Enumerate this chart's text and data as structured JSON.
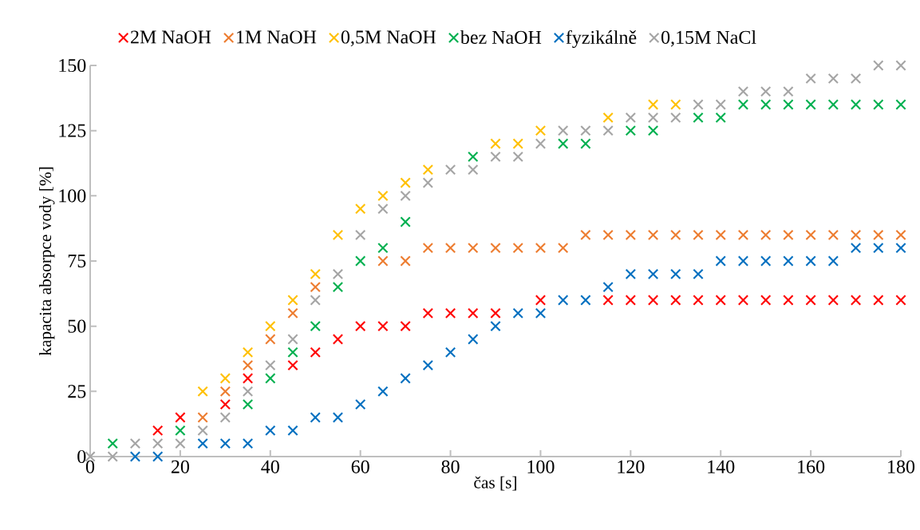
{
  "chart_data": {
    "type": "scatter",
    "xlabel": "čas [s]",
    "ylabel": "kapacita absorpce vody [%]",
    "x": [
      0,
      5,
      10,
      15,
      20,
      25,
      30,
      35,
      40,
      45,
      50,
      55,
      60,
      65,
      70,
      75,
      80,
      85,
      90,
      95,
      100,
      105,
      110,
      115,
      120,
      125,
      130,
      135,
      140,
      145,
      150,
      155,
      160,
      165,
      170,
      175,
      180
    ],
    "series": [
      {
        "name": "2M NaOH",
        "color": "#ff0000",
        "values": [
          null,
          null,
          null,
          10,
          15,
          null,
          20,
          30,
          null,
          35,
          40,
          45,
          50,
          50,
          50,
          55,
          55,
          55,
          55,
          null,
          60,
          null,
          null,
          60,
          60,
          60,
          60,
          60,
          60,
          60,
          60,
          60,
          60,
          60,
          60,
          60,
          60
        ]
      },
      {
        "name": "1M NaOH",
        "color": "#ed7d31",
        "values": [
          null,
          null,
          null,
          null,
          null,
          15,
          25,
          35,
          45,
          55,
          65,
          null,
          null,
          75,
          75,
          80,
          80,
          80,
          80,
          80,
          80,
          80,
          85,
          85,
          85,
          85,
          85,
          85,
          85,
          85,
          85,
          85,
          85,
          85,
          85,
          85,
          85
        ]
      },
      {
        "name": "0,5M NaOH",
        "color": "#ffc000",
        "values": [
          null,
          null,
          null,
          null,
          null,
          25,
          30,
          40,
          50,
          60,
          70,
          85,
          95,
          100,
          105,
          110,
          null,
          null,
          120,
          120,
          125,
          null,
          null,
          130,
          null,
          135,
          135,
          null,
          null,
          null,
          null,
          null,
          null,
          null,
          null,
          null,
          null
        ]
      },
      {
        "name": "bez NaOH",
        "color": "#00b050",
        "values": [
          null,
          5,
          null,
          null,
          10,
          null,
          null,
          20,
          30,
          40,
          50,
          65,
          75,
          80,
          90,
          null,
          null,
          115,
          null,
          null,
          null,
          120,
          120,
          null,
          125,
          125,
          null,
          130,
          130,
          135,
          135,
          135,
          135,
          135,
          135,
          135,
          135
        ]
      },
      {
        "name": "fyzikálně",
        "color": "#0070c0",
        "values": [
          null,
          null,
          0,
          0,
          null,
          5,
          5,
          5,
          10,
          10,
          15,
          15,
          20,
          25,
          30,
          35,
          40,
          45,
          50,
          55,
          55,
          60,
          60,
          65,
          70,
          70,
          70,
          70,
          75,
          75,
          75,
          75,
          75,
          75,
          80,
          80,
          80
        ]
      },
      {
        "name": "0,15M NaCl",
        "color": "#a5a5a5",
        "values": [
          0,
          0,
          5,
          5,
          5,
          10,
          15,
          25,
          35,
          45,
          60,
          70,
          85,
          95,
          100,
          105,
          110,
          110,
          115,
          115,
          120,
          125,
          125,
          125,
          130,
          130,
          130,
          135,
          135,
          140,
          140,
          140,
          145,
          145,
          145,
          150,
          150
        ]
      }
    ],
    "xlim": [
      0,
      180
    ],
    "xticks": [
      0,
      20,
      40,
      60,
      80,
      100,
      120,
      140,
      160,
      180
    ],
    "ylim": [
      0,
      150
    ],
    "yticks": [
      0,
      25,
      50,
      75,
      100,
      125,
      150
    ],
    "legend": "top",
    "marker": "cross"
  }
}
